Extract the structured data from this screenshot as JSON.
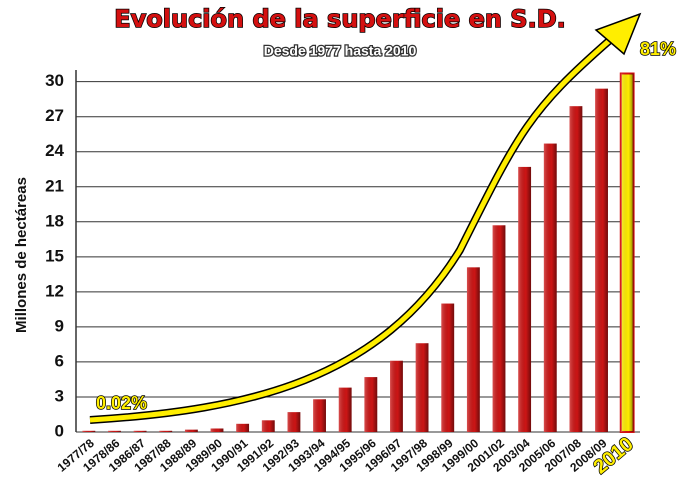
{
  "chart_data": {
    "type": "bar",
    "title": "Evolución de la superficie en S.D.",
    "subtitle": "Desde 1977 hasta 2010",
    "y_label": "Millones de hectáreas",
    "annotations": [
      "0.02%",
      "81%"
    ],
    "categories": [
      "1977/78",
      "1978/86",
      "1986/87",
      "1987/88",
      "1988/89",
      "1989/90",
      "1990/91",
      "1991/92",
      "1992/93",
      "1993/94",
      "1994/95",
      "1995/96",
      "1996/97",
      "1997/98",
      "1998/99",
      "1999/00",
      "2001/02",
      "2003/04",
      "2005/06",
      "2007/08",
      "2008/09",
      "2010"
    ],
    "values": [
      0.1,
      0.1,
      0.1,
      0.1,
      0.2,
      0.3,
      0.7,
      1.0,
      1.7,
      2.8,
      3.8,
      4.7,
      6.1,
      7.6,
      11.0,
      14.1,
      17.7,
      22.7,
      24.7,
      27.9,
      29.4,
      30.7
    ],
    "colors": [
      "#cc1515",
      "#cc1515",
      "#cc1515",
      "#cc1515",
      "#cc1515",
      "#cc1515",
      "#cc1515",
      "#cc1515",
      "#cc1515",
      "#cc1515",
      "#cc1515",
      "#cc1515",
      "#cc1515",
      "#cc1515",
      "#cc1515",
      "#cc1515",
      "#cc1515",
      "#cc1515",
      "#cc1515",
      "#cc1515",
      "#cc1515",
      "#ffee00"
    ],
    "ylim": [
      0,
      31
    ],
    "yticks": [
      0,
      3,
      6,
      9,
      12,
      15,
      18,
      21,
      24,
      27,
      30
    ],
    "grid": true
  }
}
